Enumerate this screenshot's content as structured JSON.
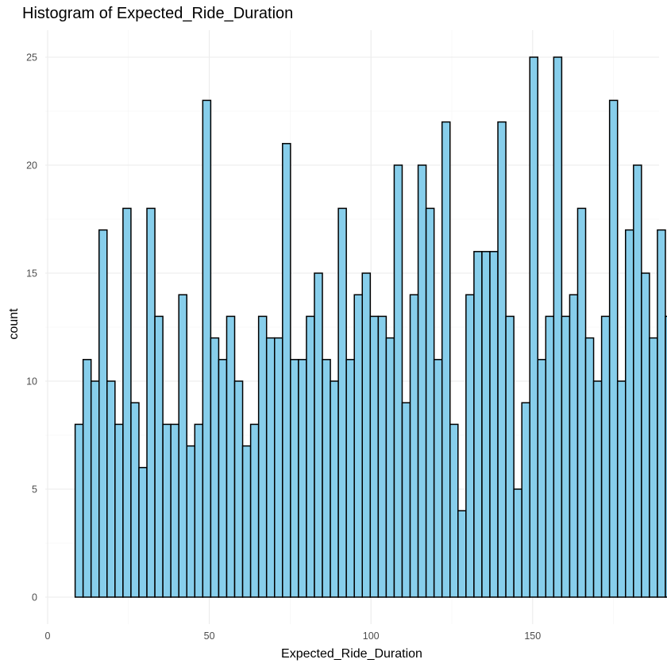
{
  "chart_data": {
    "type": "bar",
    "title": "Histogram of Expected_Ride_Duration",
    "xlabel": "Expected_Ride_Duration",
    "ylabel": "count",
    "xlim": [
      0,
      180
    ],
    "ylim": [
      0,
      25
    ],
    "x_ticks": [
      0,
      50,
      100,
      150
    ],
    "y_ticks": [
      0,
      5,
      10,
      15,
      20,
      25
    ],
    "bin_start": 8.5,
    "bin_width": 2.467,
    "values": [
      8,
      11,
      10,
      17,
      10,
      8,
      18,
      9,
      6,
      18,
      13,
      8,
      8,
      14,
      7,
      8,
      23,
      12,
      11,
      13,
      10,
      7,
      8,
      13,
      12,
      12,
      21,
      11,
      11,
      13,
      15,
      11,
      10,
      18,
      11,
      14,
      15,
      13,
      13,
      12,
      20,
      9,
      14,
      20,
      18,
      11,
      22,
      8,
      4,
      14,
      16,
      16,
      16,
      22,
      13,
      5,
      9,
      25,
      11,
      13,
      25,
      13,
      14,
      18,
      12,
      10,
      13,
      23,
      10,
      17,
      20,
      15,
      12,
      17,
      13
    ],
    "fill_color": "#87ceeb",
    "edge_color": "#000000",
    "grid": true
  }
}
